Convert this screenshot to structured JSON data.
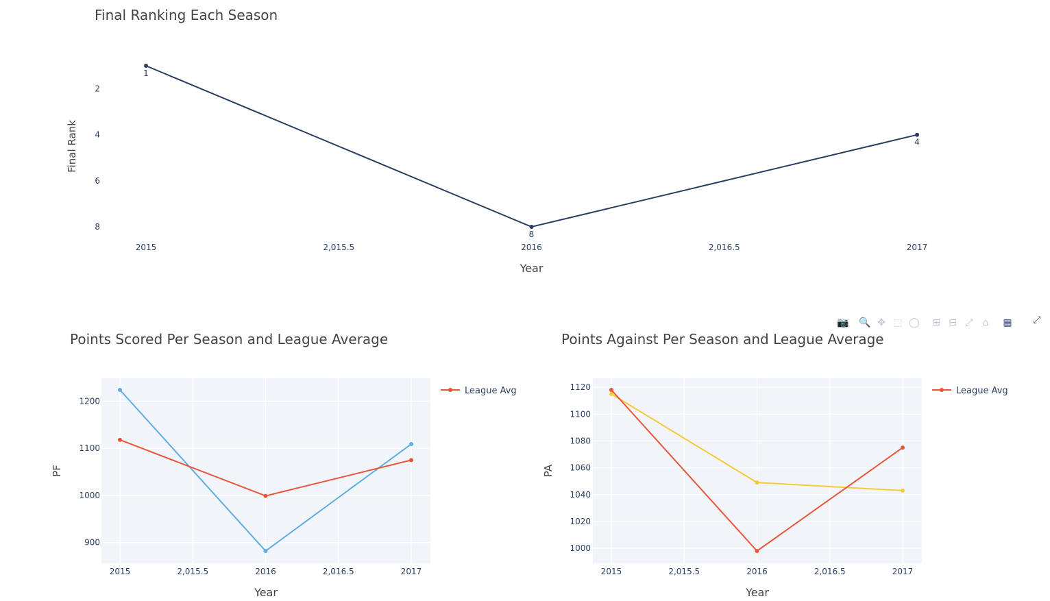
{
  "chart_data": [
    {
      "type": "line",
      "title": "Final Ranking Each Season",
      "xlabel": "Year",
      "ylabel": "Final Rank",
      "x": [
        2015,
        2016,
        2017
      ],
      "xticks": [
        "2015",
        "2,015.5",
        "2016",
        "2,016.5",
        "2017"
      ],
      "xlim": [
        2015,
        2017
      ],
      "yticks": [
        "2",
        "4",
        "6",
        "8"
      ],
      "ylim": [
        1,
        8
      ],
      "y_reversed": true,
      "grid": false,
      "series": [
        {
          "values": [
            1,
            8,
            4
          ],
          "labels": [
            "1",
            "8",
            "4"
          ],
          "color": "#2a3f5f"
        }
      ]
    },
    {
      "type": "line",
      "title": "Points Scored Per Season and League Average",
      "xlabel": "Year",
      "ylabel": "PF",
      "x": [
        2015,
        2016,
        2017
      ],
      "xticks": [
        "2015",
        "2,015.5",
        "2016",
        "2,016.5",
        "2017"
      ],
      "xlim": [
        2015,
        2017
      ],
      "yticks": [
        "900",
        "1000",
        "1100",
        "1200"
      ],
      "ylim": [
        870,
        1230
      ],
      "grid": true,
      "legend": "top-right",
      "series": [
        {
          "values": [
            1224,
            882,
            1109
          ],
          "color": "#5dade2"
        },
        {
          "name": "League Avg",
          "values": [
            1118,
            999,
            1075
          ],
          "color": "#e8553b"
        }
      ]
    },
    {
      "type": "line",
      "title": "Points Against Per Season and League Average",
      "xlabel": "Year",
      "ylabel": "PA",
      "x": [
        2015,
        2016,
        2017
      ],
      "xticks": [
        "2015",
        "2,015.5",
        "2016",
        "2,016.5",
        "2017"
      ],
      "xlim": [
        2015,
        2017
      ],
      "yticks": [
        "1000",
        "1020",
        "1040",
        "1060",
        "1080",
        "1100",
        "1120"
      ],
      "ylim": [
        990,
        1125
      ],
      "grid": true,
      "legend": "top-right",
      "series": [
        {
          "values": [
            1115,
            1049,
            1043
          ],
          "color": "#f4ca3a"
        },
        {
          "name": "League Avg",
          "values": [
            1118,
            998,
            1075
          ],
          "color": "#e8553b"
        }
      ]
    }
  ],
  "modebar": {
    "icons": [
      "camera-icon",
      "zoom-icon",
      "pan-icon",
      "box-select-icon",
      "lasso-icon",
      "zoom-in-icon",
      "zoom-out-icon",
      "autoscale-icon",
      "reset-axes-icon",
      "plotly-logo-icon",
      "fullscreen-icon"
    ]
  }
}
